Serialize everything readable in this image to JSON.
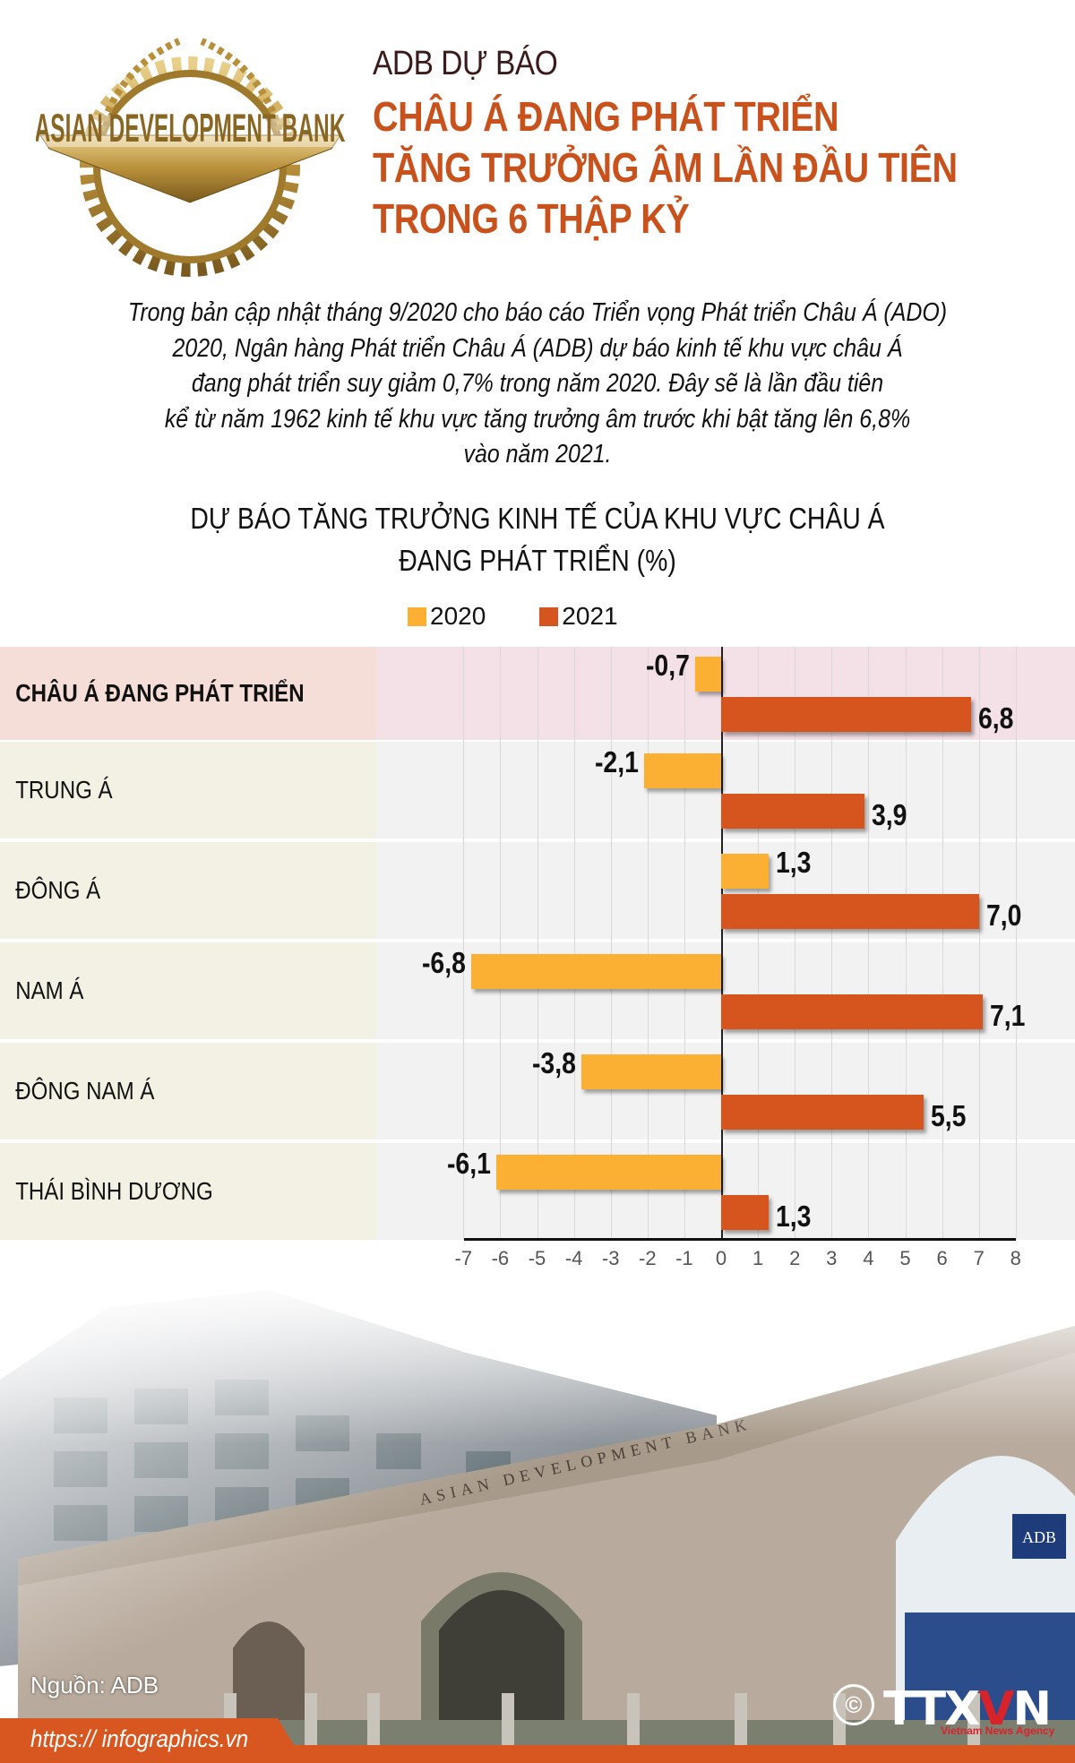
{
  "header": {
    "logo_text": "ASIAN DEVELOPMENT BANK",
    "kicker": "ADB DỰ BÁO",
    "title_lines": [
      "CHÂU Á ĐANG PHÁT TRIỂN",
      "TĂNG TRƯỞNG ÂM LẦN ĐẦU TIÊN",
      "TRONG 6 THẬP KỶ"
    ],
    "title_color": "#c9511c"
  },
  "intro": {
    "lines": [
      "Trong bản cập nhật tháng 9/2020 cho báo cáo Triển vọng Phát triển Châu Á (ADO)",
      "2020, Ngân hàng Phát triển Châu Á (ADB) dự báo kinh tế khu vực châu Á",
      "đang phát triển suy giảm 0,7% trong năm 2020. Đây sẽ là lần đầu tiên",
      "kể từ năm 1962 kinh tế khu vực tăng trưởng âm trước khi bật tăng lên 6,8%",
      "vào năm 2021."
    ]
  },
  "chart_data": {
    "type": "bar",
    "orientation": "horizontal",
    "title": "DỰ BÁO TĂNG TRƯỞNG KINH TẾ CỦA KHU VỰC CHÂU Á ĐANG PHÁT TRIỂN (%)",
    "title_lines": [
      "DỰ BÁO TĂNG TRƯỞNG KINH TẾ CỦA KHU VỰC CHÂU Á",
      "ĐANG PHÁT TRIỂN (%)"
    ],
    "categories": [
      "CHÂU Á ĐANG PHÁT TRIỂN",
      "TRUNG Á",
      "ĐÔNG Á",
      "NAM Á",
      "ĐÔNG NAM Á",
      "THÁI BÌNH DƯƠNG"
    ],
    "series": [
      {
        "name": "2020",
        "color": "#fbb034",
        "values": [
          -0.7,
          -2.1,
          1.3,
          -6.8,
          -3.8,
          -6.1
        ],
        "labels": [
          "-0,7",
          "-2,1",
          "1,3",
          "-6,8",
          "-3,8",
          "-6,1"
        ]
      },
      {
        "name": "2021",
        "color": "#d6541e",
        "values": [
          6.8,
          3.9,
          7.0,
          7.1,
          5.5,
          1.3
        ],
        "labels": [
          "6,8",
          "3,9",
          "7,0",
          "7,1",
          "5,5",
          "1,3"
        ]
      }
    ],
    "xlabel": "",
    "ylabel": "",
    "xlim": [
      -7,
      8
    ],
    "xticks": [
      "-7",
      "-6",
      "-5",
      "-4",
      "-3",
      "-2",
      "-1",
      "0",
      "1",
      "2",
      "3",
      "4",
      "5",
      "6",
      "7",
      "8"
    ],
    "grid": true,
    "legend_position": "top"
  },
  "legend": [
    {
      "label": "2020",
      "color": "#fbb034"
    },
    {
      "label": "2021",
      "color": "#d6541e"
    }
  ],
  "footer": {
    "source": "Nguồn: ADB",
    "url": "https:// infographics.vn",
    "copyright_symbol": "©",
    "agency_logo": {
      "part1": "TTX",
      "part2": "V",
      "part3": "N"
    },
    "agency_tagline": "Vietnam News Agency",
    "photo_sign": "ASIAN DEVELOPMENT BANK",
    "accent_color": "#d8561f"
  }
}
